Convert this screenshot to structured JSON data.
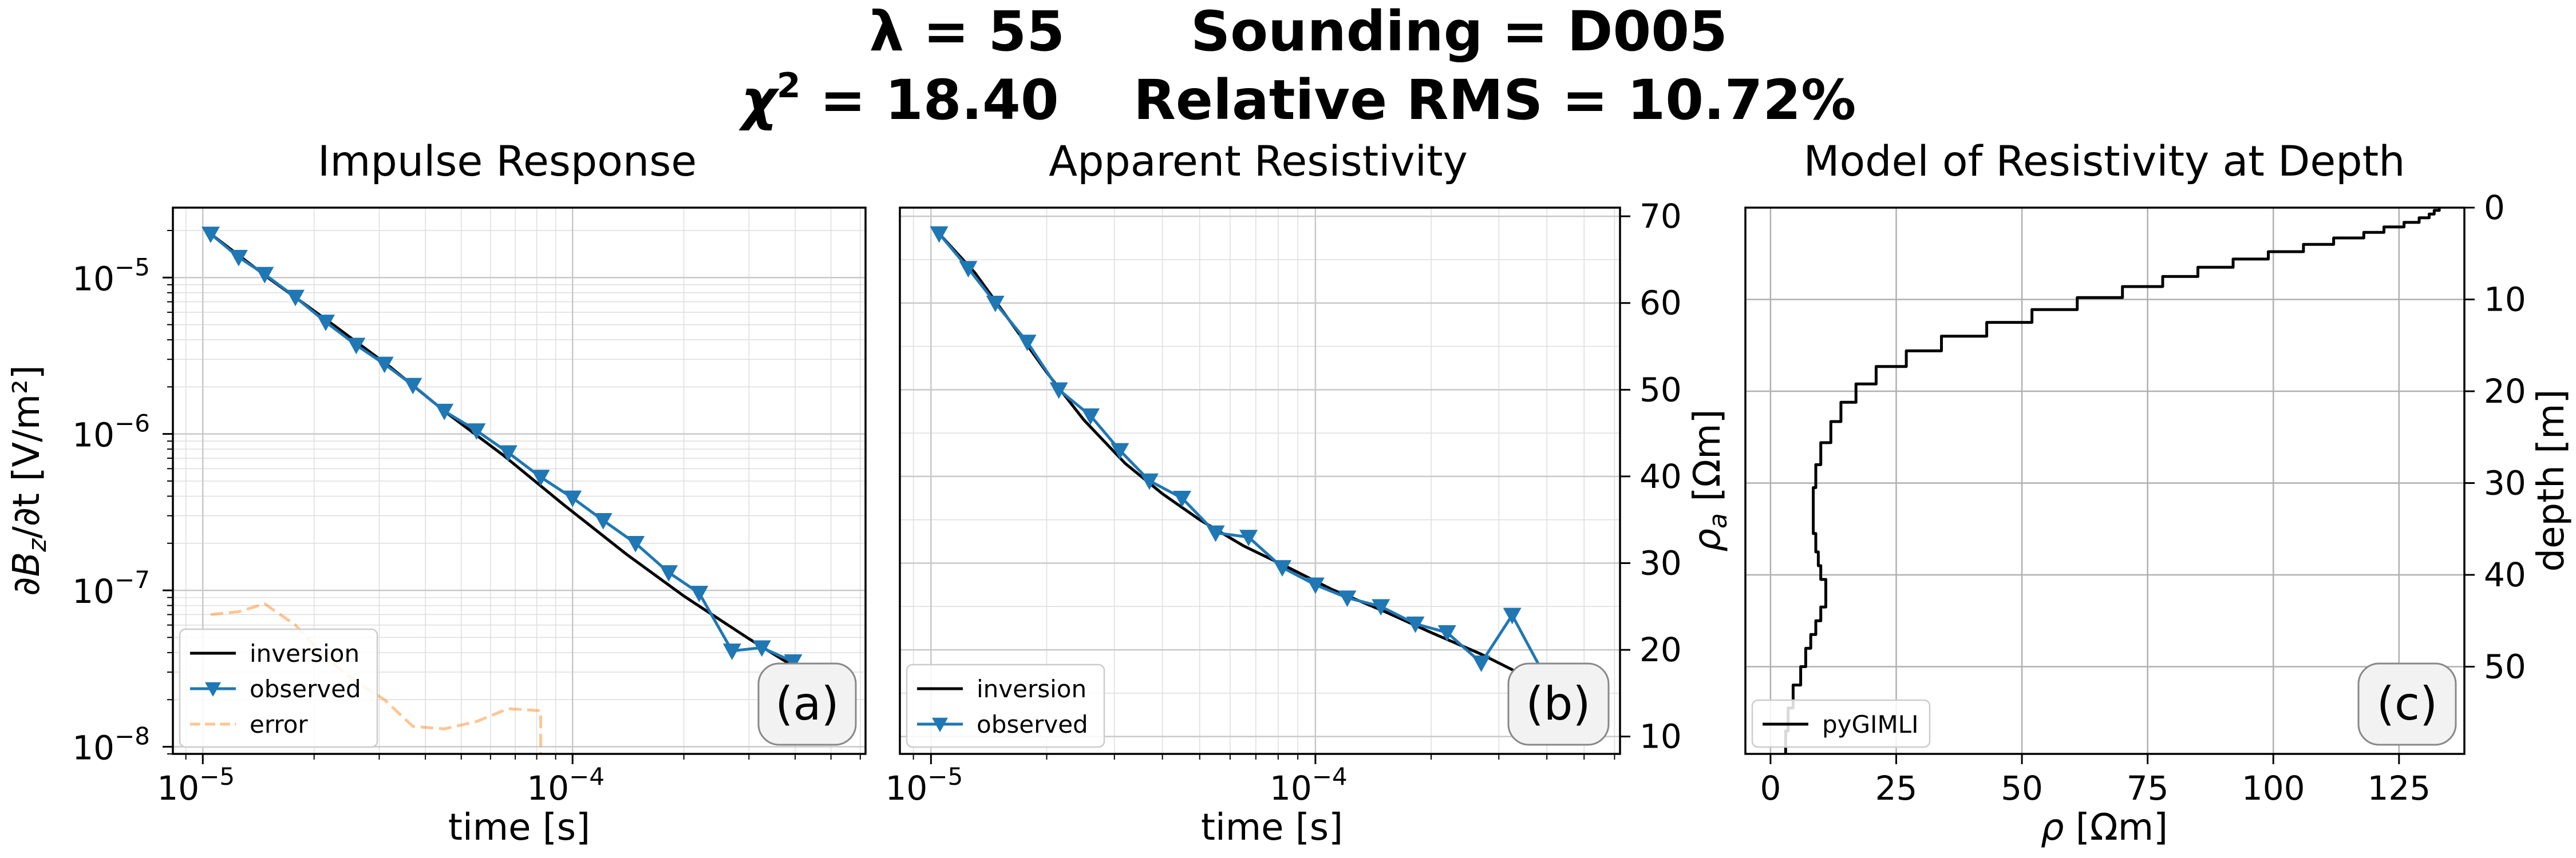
{
  "header": {
    "line1_lambda": "λ = 55",
    "line1_sounding": "Sounding = D005",
    "line2_chi_sym": "χ",
    "line2_chi_sup": "2",
    "line2_chi_val": " = 18.40",
    "line2_rms": "Relative RMS = 10.72%"
  },
  "chart_data": [
    {
      "type": "line",
      "title": "Impulse Response",
      "xlabel": "time [s]",
      "ylabel_parts": [
        "∂B",
        "z",
        "/∂t [V/m²]"
      ],
      "xscale": "log",
      "yscale": "log",
      "xlim": [
        8.3e-06,
        0.00062
      ],
      "ylim": [
        9e-09,
        2.8e-05
      ],
      "x_ticks": [
        {
          "value": 1e-05,
          "label": "10",
          "exp": "−5"
        },
        {
          "value": 0.0001,
          "label": "10",
          "exp": "−4"
        }
      ],
      "y_ticks": [
        {
          "value": 1e-08,
          "label": "10",
          "exp": "−8"
        },
        {
          "value": 1e-07,
          "label": "10",
          "exp": "−7"
        },
        {
          "value": 1e-06,
          "label": "10",
          "exp": "−6"
        },
        {
          "value": 1e-05,
          "label": "10",
          "exp": "−5"
        }
      ],
      "grid": "major+minor",
      "legend": {
        "position": "lower-left",
        "entries": [
          "inversion",
          "observed",
          "error"
        ]
      },
      "annotation": "(a)",
      "series": [
        {
          "name": "inversion",
          "color": "#000000",
          "style": "solid",
          "x": [
            1.05e-05,
            1.5e-05,
            2.2e-05,
            3.2e-05,
            4.5e-05,
            6.5e-05,
            9.5e-05,
            0.00014,
            0.0002,
            0.0003,
            0.00044,
            0.00051
          ],
          "y": [
            1.9e-05,
            1e-05,
            5.2e-06,
            2.7e-06,
            1.4e-06,
            7.3e-07,
            3.5e-07,
            1.7e-07,
            9.2e-08,
            4.9e-08,
            2.8e-08,
            2.2e-08
          ]
        },
        {
          "name": "observed",
          "color": "#1f77b4",
          "style": "solid",
          "marker": "triangle-down",
          "x": [
            1.05e-05,
            1.25e-05,
            1.47e-05,
            1.78e-05,
            2.15e-05,
            2.6e-05,
            3.1e-05,
            3.7e-05,
            4.5e-05,
            5.5e-05,
            6.7e-05,
            8.2e-05,
            0.0001,
            0.000121,
            0.000148,
            0.000182,
            0.00022,
            0.00027,
            0.000325,
            0.000395,
            0.00047,
            0.00053
          ],
          "y": [
            1.9e-05,
            1.35e-05,
            1.05e-05,
            7.5e-06,
            5.2e-06,
            3.7e-06,
            2.8e-06,
            2.05e-06,
            1.4e-06,
            1.05e-06,
            7.6e-07,
            5.3e-07,
            3.9e-07,
            2.8e-07,
            2e-07,
            1.3e-07,
            9.6e-08,
            4.1e-08,
            4.3e-08,
            3.5e-08,
            2.25e-08,
            2.35e-08
          ]
        },
        {
          "name": "error",
          "color": "#ff7f0e",
          "style": "dashed",
          "x": [
            1.05e-05,
            1.25e-05,
            1.47e-05,
            1.78e-05,
            2.15e-05,
            2.6e-05,
            3.1e-05,
            3.7e-05,
            4.5e-05,
            5.5e-05,
            6.7e-05,
            8.2e-05,
            8.2e-05
          ],
          "y": [
            7e-08,
            7.3e-08,
            8.2e-08,
            6e-08,
            3.7e-08,
            2.6e-08,
            2e-08,
            1.35e-08,
            1.3e-08,
            1.45e-08,
            1.75e-08,
            1.7e-08,
            9e-09
          ]
        }
      ]
    },
    {
      "type": "line",
      "title": "Apparent Resistivity",
      "xlabel": "time [s]",
      "ylabel_parts": [
        "ρ",
        "a",
        " [Ωm]"
      ],
      "xscale": "log",
      "yscale": "linear",
      "xlim": [
        8.3e-06,
        0.00062
      ],
      "ylim": [
        8,
        71
      ],
      "x_ticks": [
        {
          "value": 1e-05,
          "label": "10",
          "exp": "−5"
        },
        {
          "value": 0.0001,
          "label": "10",
          "exp": "−4"
        }
      ],
      "y_ticks": [
        {
          "value": 10,
          "label": "10"
        },
        {
          "value": 20,
          "label": "20"
        },
        {
          "value": 30,
          "label": "30"
        },
        {
          "value": 40,
          "label": "40"
        },
        {
          "value": 50,
          "label": "50"
        },
        {
          "value": 60,
          "label": "60"
        },
        {
          "value": 70,
          "label": "70"
        }
      ],
      "yaxis_side": "right",
      "grid": "major+minor",
      "legend": {
        "position": "lower-left",
        "entries": [
          "inversion",
          "observed"
        ]
      },
      "annotation": "(b)",
      "series": [
        {
          "name": "inversion",
          "color": "#000000",
          "style": "solid",
          "x": [
            1.05e-05,
            1.3e-05,
            1.6e-05,
            2e-05,
            2.5e-05,
            3.2e-05,
            4e-05,
            5e-05,
            6.5e-05,
            8.5e-05,
            0.00011,
            0.00015,
            0.0002,
            0.00027,
            0.00035,
            0.00045,
            0.00053
          ],
          "y": [
            68,
            63.5,
            58,
            52,
            46.5,
            41.5,
            38,
            35,
            32,
            29.5,
            27,
            24.5,
            22,
            19.5,
            17,
            14.5,
            12.5
          ]
        },
        {
          "name": "observed",
          "color": "#1f77b4",
          "style": "solid",
          "marker": "triangle-down",
          "x": [
            1.05e-05,
            1.25e-05,
            1.47e-05,
            1.78e-05,
            2.15e-05,
            2.6e-05,
            3.1e-05,
            3.7e-05,
            4.5e-05,
            5.5e-05,
            6.7e-05,
            8.2e-05,
            0.0001,
            0.000121,
            0.000148,
            0.000182,
            0.00022,
            0.00027,
            0.000325,
            0.000395,
            0.00047,
            0.00053
          ],
          "y": [
            68,
            64,
            60,
            55.5,
            50,
            47,
            43,
            39.5,
            37.5,
            33.5,
            33,
            29.5,
            27.5,
            26,
            25,
            23,
            22,
            18.5,
            24,
            17,
            14.5,
            11
          ]
        }
      ]
    },
    {
      "type": "line",
      "title": "Model of Resistivity at Depth",
      "xlabel_parts": [
        "ρ",
        " [Ωm]"
      ],
      "ylabel": "depth [m]",
      "xscale": "linear",
      "yscale": "linear",
      "y_inverted": true,
      "xlim": [
        -5,
        138
      ],
      "ylim": [
        59.5,
        0
      ],
      "x_ticks": [
        {
          "value": 0,
          "label": "0"
        },
        {
          "value": 25,
          "label": "25"
        },
        {
          "value": 50,
          "label": "50"
        },
        {
          "value": 75,
          "label": "75"
        },
        {
          "value": 100,
          "label": "100"
        },
        {
          "value": 125,
          "label": "125"
        }
      ],
      "y_ticks": [
        {
          "value": 0,
          "label": "0"
        },
        {
          "value": 10,
          "label": "10"
        },
        {
          "value": 20,
          "label": "20"
        },
        {
          "value": 30,
          "label": "30"
        },
        {
          "value": 40,
          "label": "40"
        },
        {
          "value": 50,
          "label": "50"
        }
      ],
      "yaxis_side": "right",
      "grid": "major",
      "legend": {
        "position": "lower-left",
        "entries": [
          "pyGIMLI"
        ]
      },
      "annotation": "(c)",
      "series": [
        {
          "name": "pyGIMLI",
          "color": "#000000",
          "style": "step",
          "resistivity": [
            133,
            132,
            131,
            129,
            126,
            122,
            118,
            112,
            106,
            99,
            92,
            85,
            78,
            70,
            61,
            52,
            43,
            34,
            27,
            21,
            17,
            14,
            12,
            10,
            9,
            8.5,
            8.5,
            9,
            9.5,
            10,
            11,
            11,
            10,
            9,
            8,
            7,
            6,
            4.5,
            3.5,
            3
          ],
          "depth_bottom": [
            0.3,
            0.7,
            1.1,
            1.6,
            2.1,
            2.7,
            3.3,
            4.0,
            4.8,
            5.6,
            6.5,
            7.5,
            8.6,
            9.8,
            11.1,
            12.5,
            14.0,
            15.6,
            17.3,
            19.2,
            21.2,
            23.3,
            25.6,
            28.0,
            30.5,
            33.2,
            35.5,
            37.5,
            39.0,
            40.5,
            42.0,
            43.5,
            45.0,
            46.5,
            48.0,
            50.0,
            52.0,
            54.5,
            57.0,
            59.5
          ]
        }
      ]
    }
  ]
}
